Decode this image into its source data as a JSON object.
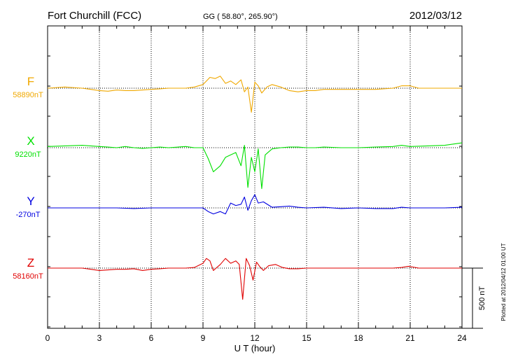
{
  "page": {
    "station": "Fort Churchill (FCC)",
    "coords": "GG ( 58.80°, 265.90°)",
    "date": "2012/03/12",
    "plotted_note": "Plotted at 2012/04/12 01:00 UT",
    "scale_label": "500 nT"
  },
  "chart_data": {
    "type": "line",
    "title": "Fort Churchill (FCC)",
    "xlabel": "U T (hour)",
    "ylabel": "",
    "xlim": [
      0,
      24
    ],
    "x_ticks": [
      "0",
      "3",
      "6",
      "9",
      "12",
      "15",
      "18",
      "21",
      "24"
    ],
    "grid": true,
    "scale_bar_nT": 500,
    "series": [
      {
        "name": "F",
        "baseline": "58890nT",
        "color": "#f0a800",
        "x": [
          0,
          1,
          2,
          2.5,
          3,
          3.5,
          4,
          4.5,
          5,
          5.5,
          6,
          6.5,
          7,
          8,
          8.5,
          9,
          9.2,
          9.4,
          9.7,
          10,
          10.3,
          10.6,
          10.9,
          11.2,
          11.4,
          11.6,
          11.8,
          12.0,
          12.2,
          12.4,
          12.7,
          13,
          13.5,
          14,
          14.5,
          15,
          15.5,
          16,
          17,
          18,
          19,
          20,
          20.5,
          21,
          21.5,
          22,
          23,
          24
        ],
        "values": [
          0,
          10,
          0,
          -10,
          -20,
          -25,
          -15,
          -20,
          -20,
          -15,
          -10,
          -5,
          0,
          0,
          10,
          30,
          60,
          90,
          80,
          100,
          40,
          60,
          30,
          70,
          -30,
          10,
          -200,
          50,
          20,
          -40,
          10,
          30,
          10,
          -20,
          -30,
          -20,
          -20,
          -10,
          -10,
          -10,
          -10,
          0,
          20,
          20,
          0,
          0,
          0,
          0
        ]
      },
      {
        "name": "X",
        "baseline": "9220nT",
        "color": "#00e000",
        "x": [
          0,
          1,
          2,
          2.5,
          3,
          3.5,
          4,
          4.5,
          5,
          5.5,
          6,
          6.5,
          7,
          8,
          8.5,
          9,
          9.3,
          9.6,
          10,
          10.3,
          10.6,
          10.9,
          11.2,
          11.4,
          11.6,
          11.8,
          12.0,
          12.2,
          12.4,
          12.6,
          13,
          13.5,
          14,
          14.5,
          15,
          15.5,
          16,
          17,
          18,
          19,
          20,
          20.5,
          21,
          22,
          23,
          24
        ],
        "values": [
          10,
          15,
          20,
          15,
          10,
          5,
          0,
          10,
          0,
          -5,
          0,
          5,
          0,
          10,
          0,
          0,
          -90,
          -200,
          -150,
          -80,
          -60,
          -40,
          -150,
          20,
          -330,
          -80,
          -200,
          -10,
          -340,
          -60,
          -10,
          0,
          5,
          5,
          0,
          0,
          5,
          0,
          0,
          5,
          10,
          20,
          10,
          15,
          20,
          40
        ]
      },
      {
        "name": "Y",
        "baseline": "-270nT",
        "color": "#0000e0",
        "x": [
          0,
          1,
          2,
          3,
          4,
          5,
          6,
          7,
          8,
          9,
          9.3,
          9.6,
          10,
          10.3,
          10.6,
          10.9,
          11.2,
          11.4,
          11.6,
          11.8,
          12.0,
          12.2,
          12.5,
          13,
          13.5,
          14,
          14.5,
          15,
          16,
          17,
          18,
          19,
          20,
          20.5,
          21,
          22,
          23,
          24
        ],
        "values": [
          0,
          0,
          0,
          0,
          0,
          -5,
          0,
          0,
          0,
          0,
          -30,
          -50,
          -30,
          -50,
          40,
          20,
          30,
          90,
          -20,
          60,
          110,
          40,
          50,
          5,
          10,
          15,
          5,
          0,
          5,
          -5,
          0,
          -5,
          -5,
          5,
          0,
          0,
          0,
          5
        ]
      },
      {
        "name": "Z",
        "baseline": "58160nT",
        "color": "#e00000",
        "x": [
          0,
          1,
          2,
          2.5,
          3,
          3.5,
          4,
          4.5,
          5,
          5.5,
          6,
          6.5,
          7,
          8,
          8.5,
          9,
          9.2,
          9.4,
          9.6,
          10,
          10.3,
          10.6,
          10.9,
          11.1,
          11.3,
          11.5,
          11.7,
          11.9,
          12.1,
          12.3,
          12.5,
          12.8,
          13.2,
          13.6,
          14,
          14.5,
          15,
          16,
          17,
          18,
          19,
          20,
          20.5,
          20.9,
          21.5,
          22,
          23,
          24
        ],
        "values": [
          0,
          0,
          0,
          -10,
          -20,
          -15,
          -10,
          -10,
          -5,
          -20,
          -10,
          -5,
          0,
          0,
          5,
          40,
          80,
          60,
          -20,
          30,
          80,
          40,
          60,
          30,
          -260,
          80,
          20,
          -100,
          50,
          10,
          -20,
          20,
          30,
          5,
          -5,
          -5,
          0,
          0,
          0,
          0,
          0,
          0,
          5,
          15,
          0,
          0,
          0,
          0
        ]
      }
    ]
  }
}
